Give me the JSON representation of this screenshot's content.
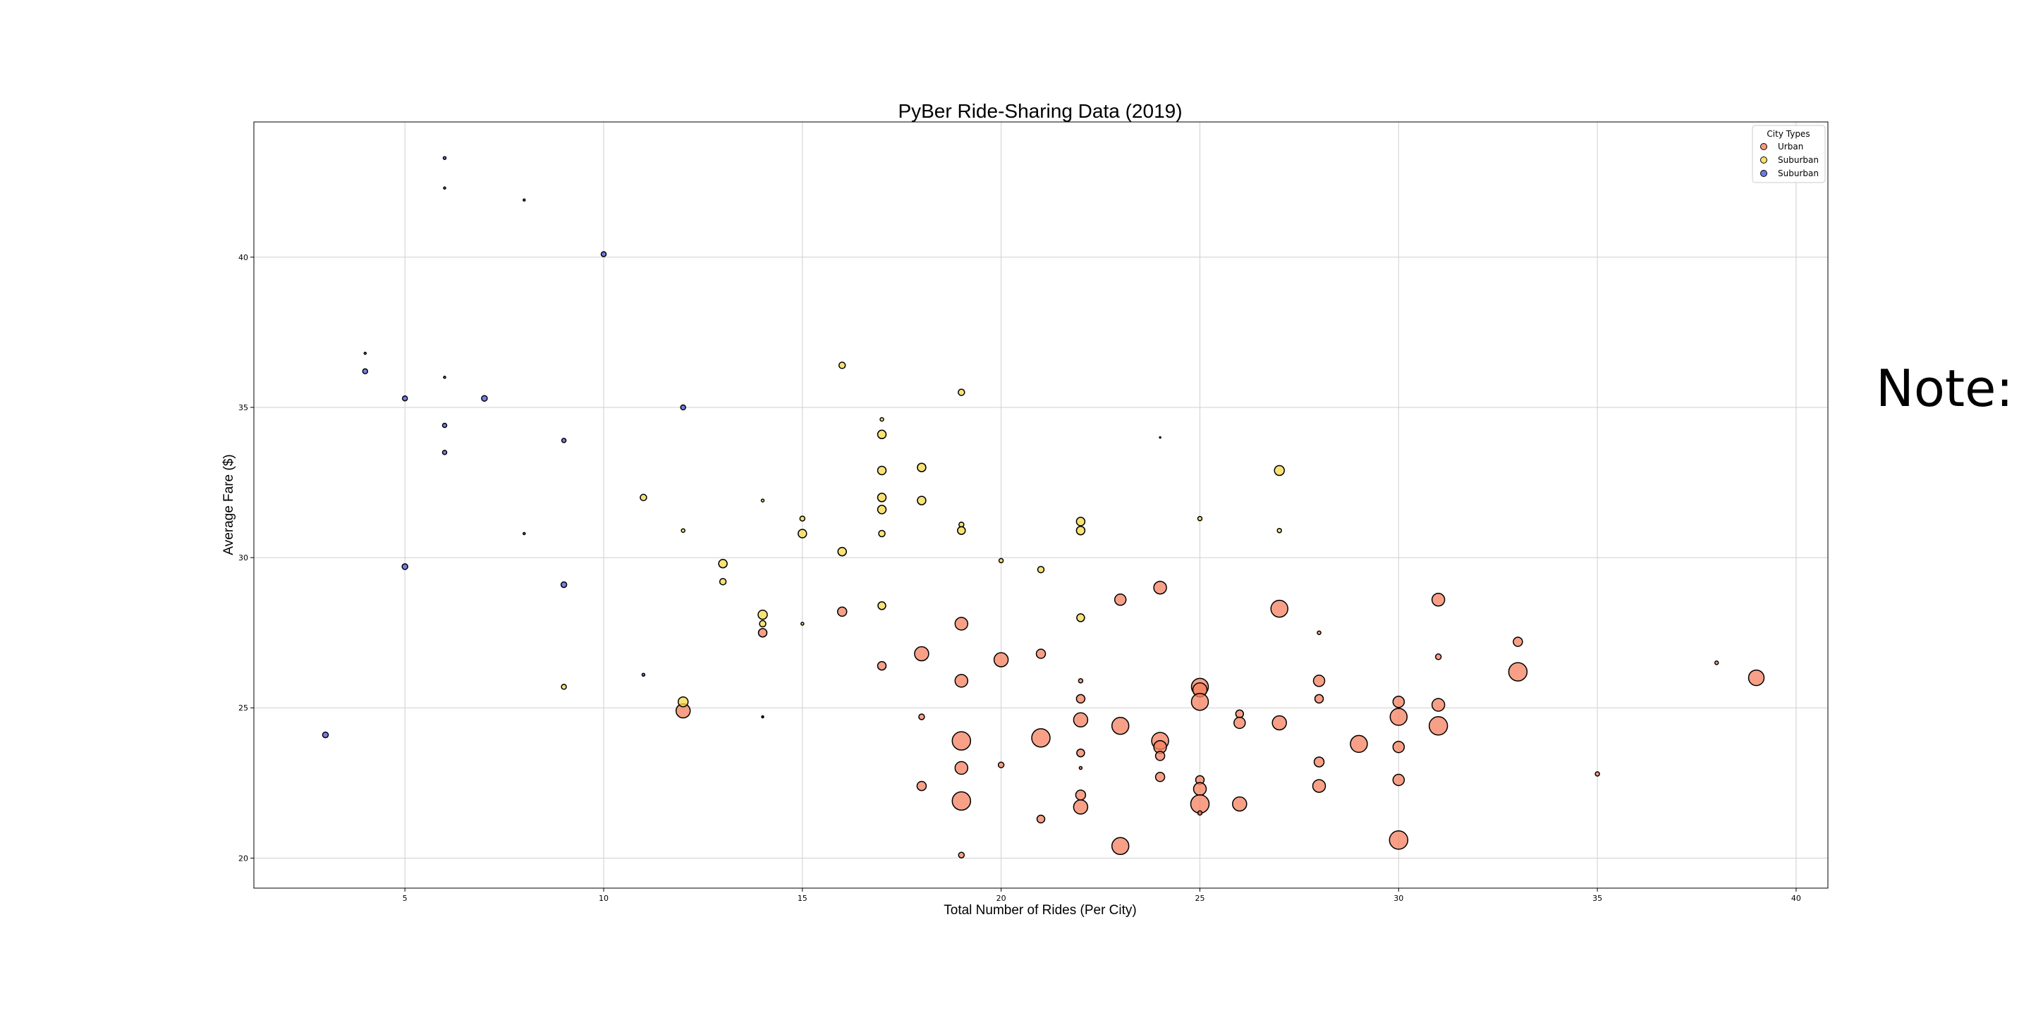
{
  "note_text": "Note: (",
  "chart_data": {
    "type": "scatter",
    "title": "PyBer Ride-Sharing Data (2019)",
    "xlabel": "Total Number of Rides (Per City)",
    "ylabel": "Average Fare ($)",
    "xlim": [
      1.2,
      40.8
    ],
    "ylim": [
      19.0,
      44.5
    ],
    "xticks": [
      5,
      10,
      15,
      20,
      25,
      30,
      35,
      40
    ],
    "yticks": [
      20,
      25,
      30,
      35,
      40
    ],
    "grid": true,
    "legend": {
      "title": "City Types",
      "placement": "top-right",
      "entries": [
        "Urban",
        "Suburban",
        "Suburban"
      ]
    },
    "marker_edge_color": "#000000",
    "series": [
      {
        "name": "Urban",
        "color": "#f5805f",
        "points": [
          {
            "x": 12,
            "y": 24.9,
            "s": 20
          },
          {
            "x": 14,
            "y": 27.5,
            "s": 12
          },
          {
            "x": 16,
            "y": 28.2,
            "s": 13
          },
          {
            "x": 17,
            "y": 26.4,
            "s": 12
          },
          {
            "x": 18,
            "y": 26.8,
            "s": 20
          },
          {
            "x": 18,
            "y": 24.7,
            "s": 8
          },
          {
            "x": 18,
            "y": 22.4,
            "s": 13
          },
          {
            "x": 19,
            "y": 27.8,
            "s": 18
          },
          {
            "x": 19,
            "y": 25.9,
            "s": 18
          },
          {
            "x": 19,
            "y": 23.9,
            "s": 26
          },
          {
            "x": 19,
            "y": 23.0,
            "s": 18
          },
          {
            "x": 19,
            "y": 21.9,
            "s": 26
          },
          {
            "x": 19,
            "y": 20.1,
            "s": 8
          },
          {
            "x": 20,
            "y": 26.6,
            "s": 20
          },
          {
            "x": 20,
            "y": 23.1,
            "s": 8
          },
          {
            "x": 21,
            "y": 26.8,
            "s": 13
          },
          {
            "x": 21,
            "y": 24.0,
            "s": 26
          },
          {
            "x": 21,
            "y": 21.3,
            "s": 11
          },
          {
            "x": 22,
            "y": 25.9,
            "s": 6
          },
          {
            "x": 22,
            "y": 25.3,
            "s": 12
          },
          {
            "x": 22,
            "y": 24.6,
            "s": 20
          },
          {
            "x": 22,
            "y": 23.5,
            "s": 11
          },
          {
            "x": 22,
            "y": 23.0,
            "s": 4
          },
          {
            "x": 22,
            "y": 22.1,
            "s": 14
          },
          {
            "x": 22,
            "y": 21.7,
            "s": 20
          },
          {
            "x": 23,
            "y": 28.6,
            "s": 16
          },
          {
            "x": 23,
            "y": 24.4,
            "s": 24
          },
          {
            "x": 23,
            "y": 20.4,
            "s": 24
          },
          {
            "x": 24,
            "y": 29.0,
            "s": 18
          },
          {
            "x": 24,
            "y": 23.9,
            "s": 24
          },
          {
            "x": 24,
            "y": 23.7,
            "s": 18
          },
          {
            "x": 24,
            "y": 23.4,
            "s": 13
          },
          {
            "x": 24,
            "y": 22.7,
            "s": 13
          },
          {
            "x": 25,
            "y": 25.7,
            "s": 24
          },
          {
            "x": 25,
            "y": 25.6,
            "s": 20
          },
          {
            "x": 25,
            "y": 25.2,
            "s": 24
          },
          {
            "x": 25,
            "y": 22.6,
            "s": 12
          },
          {
            "x": 25,
            "y": 22.3,
            "s": 18
          },
          {
            "x": 25,
            "y": 21.8,
            "s": 26
          },
          {
            "x": 25,
            "y": 21.5,
            "s": 6
          },
          {
            "x": 26,
            "y": 24.8,
            "s": 11
          },
          {
            "x": 26,
            "y": 24.5,
            "s": 16
          },
          {
            "x": 26,
            "y": 21.8,
            "s": 20
          },
          {
            "x": 27,
            "y": 28.3,
            "s": 24
          },
          {
            "x": 27,
            "y": 24.5,
            "s": 20
          },
          {
            "x": 28,
            "y": 27.5,
            "s": 5
          },
          {
            "x": 28,
            "y": 25.9,
            "s": 16
          },
          {
            "x": 28,
            "y": 25.3,
            "s": 12
          },
          {
            "x": 28,
            "y": 23.2,
            "s": 14
          },
          {
            "x": 28,
            "y": 22.4,
            "s": 18
          },
          {
            "x": 29,
            "y": 23.8,
            "s": 24
          },
          {
            "x": 30,
            "y": 25.2,
            "s": 16
          },
          {
            "x": 30,
            "y": 24.7,
            "s": 24
          },
          {
            "x": 30,
            "y": 23.7,
            "s": 16
          },
          {
            "x": 30,
            "y": 22.6,
            "s": 16
          },
          {
            "x": 30,
            "y": 20.6,
            "s": 26
          },
          {
            "x": 31,
            "y": 28.6,
            "s": 18
          },
          {
            "x": 31,
            "y": 26.7,
            "s": 8
          },
          {
            "x": 31,
            "y": 25.1,
            "s": 18
          },
          {
            "x": 31,
            "y": 24.4,
            "s": 26
          },
          {
            "x": 33,
            "y": 27.2,
            "s": 13
          },
          {
            "x": 33,
            "y": 26.2,
            "s": 26
          },
          {
            "x": 35,
            "y": 22.8,
            "s": 6
          },
          {
            "x": 38,
            "y": 26.5,
            "s": 5
          },
          {
            "x": 39,
            "y": 26.0,
            "s": 22
          }
        ]
      },
      {
        "name": "Suburban",
        "color": "#f6d848",
        "points": [
          {
            "x": 9,
            "y": 25.7,
            "s": 7
          },
          {
            "x": 11,
            "y": 32.0,
            "s": 9
          },
          {
            "x": 12,
            "y": 30.9,
            "s": 5
          },
          {
            "x": 12,
            "y": 25.2,
            "s": 14
          },
          {
            "x": 13,
            "y": 29.8,
            "s": 12
          },
          {
            "x": 13,
            "y": 29.2,
            "s": 9
          },
          {
            "x": 14,
            "y": 31.9,
            "s": 4
          },
          {
            "x": 14,
            "y": 28.1,
            "s": 13
          },
          {
            "x": 14,
            "y": 27.8,
            "s": 9
          },
          {
            "x": 14,
            "y": 24.7,
            "s": 3
          },
          {
            "x": 15,
            "y": 31.3,
            "s": 7
          },
          {
            "x": 15,
            "y": 30.8,
            "s": 12
          },
          {
            "x": 15,
            "y": 27.8,
            "s": 4
          },
          {
            "x": 16,
            "y": 36.4,
            "s": 9
          },
          {
            "x": 16,
            "y": 30.2,
            "s": 12
          },
          {
            "x": 17,
            "y": 34.6,
            "s": 5
          },
          {
            "x": 17,
            "y": 34.1,
            "s": 12
          },
          {
            "x": 17,
            "y": 32.9,
            "s": 12
          },
          {
            "x": 17,
            "y": 32.0,
            "s": 12
          },
          {
            "x": 17,
            "y": 31.6,
            "s": 12
          },
          {
            "x": 17,
            "y": 30.8,
            "s": 9
          },
          {
            "x": 17,
            "y": 28.4,
            "s": 11
          },
          {
            "x": 18,
            "y": 33.0,
            "s": 12
          },
          {
            "x": 18,
            "y": 31.9,
            "s": 12
          },
          {
            "x": 19,
            "y": 35.5,
            "s": 9
          },
          {
            "x": 19,
            "y": 31.1,
            "s": 7
          },
          {
            "x": 19,
            "y": 30.9,
            "s": 11
          },
          {
            "x": 20,
            "y": 29.9,
            "s": 6
          },
          {
            "x": 21,
            "y": 29.6,
            "s": 9
          },
          {
            "x": 22,
            "y": 31.2,
            "s": 12
          },
          {
            "x": 22,
            "y": 30.9,
            "s": 12
          },
          {
            "x": 22,
            "y": 28.0,
            "s": 11
          },
          {
            "x": 25,
            "y": 31.3,
            "s": 6
          },
          {
            "x": 27,
            "y": 32.9,
            "s": 14
          },
          {
            "x": 27,
            "y": 30.9,
            "s": 6
          }
        ]
      },
      {
        "name": "Suburban",
        "color": "#4b55dc",
        "points": [
          {
            "x": 3,
            "y": 24.1,
            "s": 8
          },
          {
            "x": 4,
            "y": 36.8,
            "s": 3
          },
          {
            "x": 4,
            "y": 36.2,
            "s": 7
          },
          {
            "x": 5,
            "y": 35.3,
            "s": 7
          },
          {
            "x": 5,
            "y": 29.7,
            "s": 8
          },
          {
            "x": 6,
            "y": 43.3,
            "s": 4
          },
          {
            "x": 6,
            "y": 42.3,
            "s": 3
          },
          {
            "x": 6,
            "y": 36.0,
            "s": 3
          },
          {
            "x": 6,
            "y": 34.4,
            "s": 6
          },
          {
            "x": 6,
            "y": 33.5,
            "s": 6
          },
          {
            "x": 7,
            "y": 35.3,
            "s": 8
          },
          {
            "x": 8,
            "y": 41.9,
            "s": 3
          },
          {
            "x": 8,
            "y": 30.8,
            "s": 3
          },
          {
            "x": 9,
            "y": 33.9,
            "s": 6
          },
          {
            "x": 9,
            "y": 29.1,
            "s": 8
          },
          {
            "x": 10,
            "y": 40.1,
            "s": 7
          },
          {
            "x": 11,
            "y": 26.1,
            "s": 4
          },
          {
            "x": 12,
            "y": 35.0,
            "s": 7
          },
          {
            "x": 14,
            "y": 24.7,
            "s": 2
          },
          {
            "x": 24,
            "y": 34.0,
            "s": 2
          }
        ]
      }
    ]
  }
}
